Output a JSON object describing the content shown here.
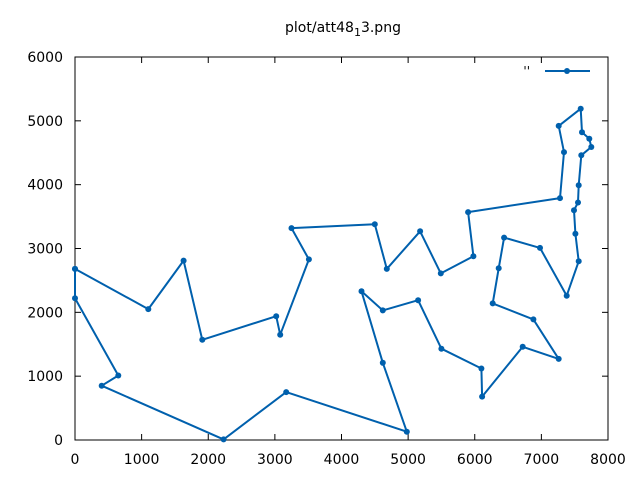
{
  "chart_data": {
    "type": "line",
    "title": "plot/att48_13.png",
    "title_main": "plot/att48",
    "title_sub": "1",
    "title_tail": "3.png",
    "xlabel": "",
    "ylabel": "",
    "xlim": [
      0,
      8000
    ],
    "ylim": [
      0,
      6000
    ],
    "xticks": [
      0,
      1000,
      2000,
      3000,
      4000,
      5000,
      6000,
      7000,
      8000
    ],
    "yticks": [
      0,
      1000,
      2000,
      3000,
      4000,
      5000,
      6000
    ],
    "grid": false,
    "legend_position": "top-right",
    "series": [
      {
        "name": "''",
        "color": "#0060ad",
        "marker": "filled-circle",
        "x": [
          0,
          0,
          650,
          400,
          2230,
          3170,
          4980,
          4620,
          4300,
          4620,
          5150,
          5500,
          6100,
          6110,
          6720,
          7260,
          6880,
          6270,
          6360,
          6440,
          6980,
          7380,
          7560,
          7510,
          7490,
          7550,
          7560,
          7600,
          7750,
          7720,
          7610,
          7590,
          7260,
          7340,
          7280,
          5900,
          5980,
          5490,
          5180,
          4680,
          4500,
          3250,
          3510,
          3080,
          3020,
          1910,
          1630,
          1100,
          0
        ],
        "y": [
          2680,
          2220,
          1010,
          850,
          10,
          750,
          130,
          1210,
          2330,
          2030,
          2190,
          1430,
          1120,
          680,
          1460,
          1270,
          1890,
          2140,
          2690,
          3170,
          3010,
          2260,
          2800,
          3230,
          3600,
          3720,
          3990,
          4460,
          4590,
          4720,
          4820,
          5190,
          4920,
          4510,
          3790,
          3570,
          2880,
          2610,
          3270,
          2680,
          3380,
          3320,
          2830,
          1650,
          1940,
          1570,
          2810,
          2050,
          2680
        ]
      }
    ]
  }
}
